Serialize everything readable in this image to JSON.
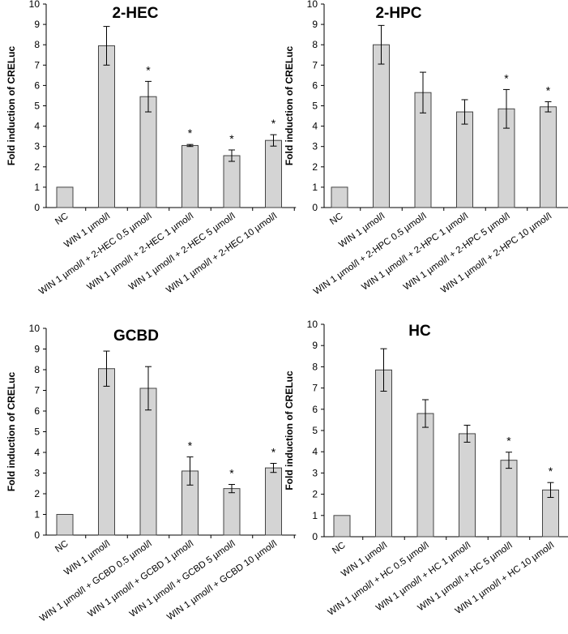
{
  "chart_data": [
    {
      "type": "bar",
      "title": "2-HEC",
      "ylabel": "Fold induction of CRELuc",
      "xlabel": "",
      "ylim": [
        0,
        10
      ],
      "yticks": [
        "0",
        "1",
        "2",
        "3",
        "4",
        "5",
        "6",
        "7",
        "8",
        "9",
        "10"
      ],
      "categories": [
        "NC",
        "WIN 1 µmol/l",
        "WIN 1 µmol/l + 2-HEC 0.5 µmol/l",
        "WIN 1 µmol/l + 2-HEC 1 µmol/l",
        "WIN 1 µmol/l + 2-HEC 5 µmol/l",
        "WIN 1 µmol/l + 2-HEC 10 µmol/l"
      ],
      "values": [
        1.0,
        7.95,
        5.45,
        3.05,
        2.55,
        3.3
      ],
      "errors": [
        0,
        0.95,
        0.75,
        0.05,
        0.28,
        0.28
      ],
      "significance": [
        "",
        "",
        "*",
        "*",
        "*",
        "*"
      ]
    },
    {
      "type": "bar",
      "title": "2-HPC",
      "ylabel": "Fold induction of CRELuc",
      "xlabel": "",
      "ylim": [
        0,
        10
      ],
      "yticks": [
        "0",
        "1",
        "2",
        "3",
        "4",
        "5",
        "6",
        "7",
        "8",
        "9",
        "10"
      ],
      "categories": [
        "NC",
        "WIN 1 µmol/l",
        "WIN 1 µmol/l + 2-HPC 0.5 µmol/l",
        "WIN 1 µmol/l + 2-HPC 1 µmol/l",
        "WIN 1 µmol/l + 2-HPC 5 µmol/l",
        "WIN 1 µmol/l + 2-HPC 10 µmol/l"
      ],
      "values": [
        1.0,
        8.0,
        5.65,
        4.7,
        4.85,
        4.95
      ],
      "errors": [
        0,
        0.95,
        1.0,
        0.6,
        0.95,
        0.25
      ],
      "significance": [
        "",
        "",
        "",
        "",
        "*",
        "*"
      ]
    },
    {
      "type": "bar",
      "title": "GCBD",
      "ylabel": "Fold induction of CRELuc",
      "xlabel": "",
      "ylim": [
        0,
        10
      ],
      "yticks": [
        "0",
        "1",
        "2",
        "3",
        "4",
        "5",
        "6",
        "7",
        "8",
        "9",
        "10"
      ],
      "categories": [
        "NC",
        "WIN 1 µmol/l",
        "WIN 1 µmol/l + GCBD 0.5 µmol/l",
        "WIN 1 µmol/l + GCBD 1 µmol/l",
        "WIN 1 µmol/l + GCBD 5 µmol/l",
        "WIN 1 µmol/l + GCBD 10 µmol/l"
      ],
      "values": [
        1.0,
        8.05,
        7.1,
        3.1,
        2.25,
        3.25
      ],
      "errors": [
        0,
        0.85,
        1.05,
        0.68,
        0.2,
        0.22
      ],
      "significance": [
        "",
        "",
        "",
        "*",
        "*",
        "*"
      ]
    },
    {
      "type": "bar",
      "title": "HC",
      "ylabel": "Fold induction of CRELuc",
      "xlabel": "",
      "ylim": [
        0,
        10
      ],
      "yticks": [
        "0",
        "1",
        "2",
        "3",
        "4",
        "5",
        "6",
        "7",
        "8",
        "9",
        "10"
      ],
      "categories": [
        "NC",
        "WIN 1 µmol/l",
        "WIN 1 µmol/l + HC 0.5 µmol/l",
        "WIN 1 µmol/l + HC 1 µmol/l",
        "WIN 1 µmol/l + HC 5 µmol/l",
        "WIN 1 µmol/l + HC 10 µmol/l"
      ],
      "values": [
        1.0,
        7.85,
        5.8,
        4.85,
        3.6,
        2.2
      ],
      "errors": [
        0,
        1.0,
        0.65,
        0.4,
        0.38,
        0.35
      ],
      "significance": [
        "",
        "",
        "",
        "",
        "*",
        "*"
      ]
    }
  ]
}
